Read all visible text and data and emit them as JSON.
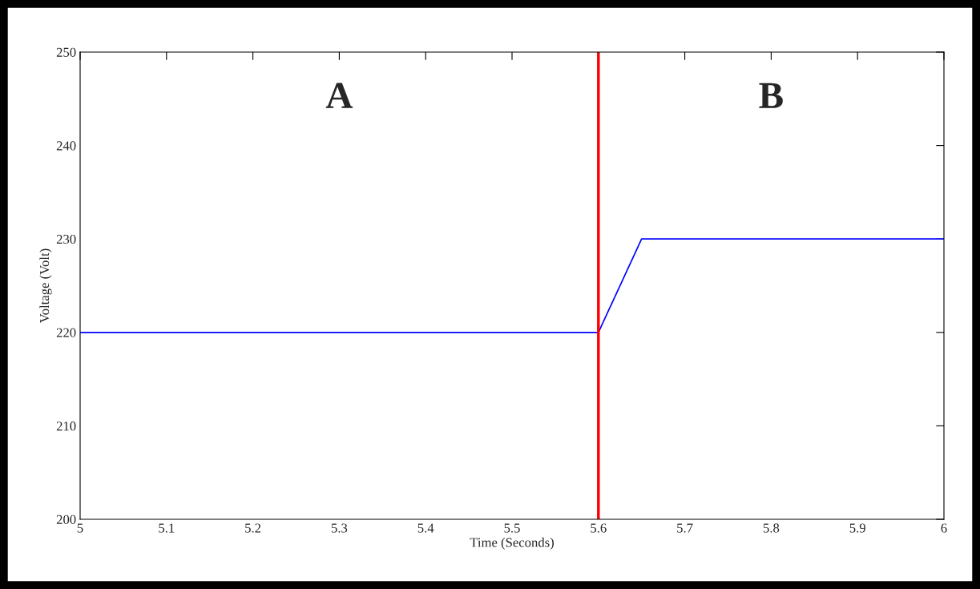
{
  "chart_data": {
    "type": "line",
    "xlabel": "Time (Seconds)",
    "ylabel": "Voltage (Volt)",
    "series": [
      {
        "color": "#0000ff",
        "x": [
          5,
          5.6,
          5.65,
          6
        ],
        "values": [
          220,
          220,
          230,
          230
        ]
      }
    ],
    "xlim": [
      5,
      6
    ],
    "xticks": [
      5,
      5.1,
      5.2,
      5.3,
      5.4,
      5.5,
      5.6,
      5.7,
      5.8,
      5.9,
      6
    ],
    "ylim": [
      200,
      250
    ],
    "yticks": [
      200,
      210,
      220,
      230,
      240,
      250
    ],
    "ref_lines": [
      {
        "axis": "x",
        "value": 5.6,
        "color": "#ff0000"
      }
    ],
    "annotations": [
      "A",
      "B"
    ],
    "grid": false,
    "legend": false,
    "marker": "none",
    "line_style": "solid"
  }
}
